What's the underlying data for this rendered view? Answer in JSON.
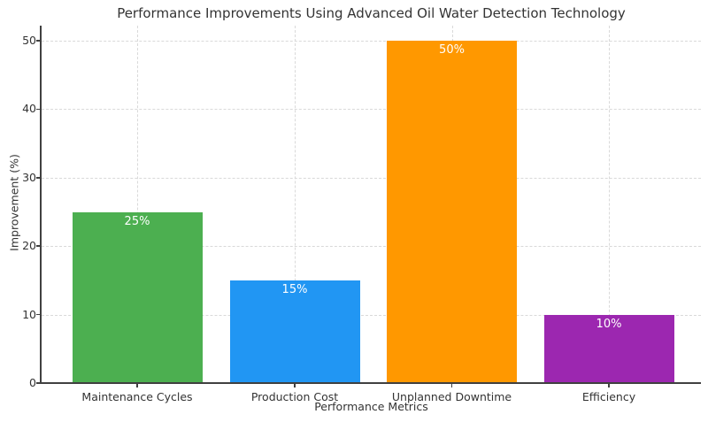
{
  "chart_data": {
    "type": "bar",
    "title": "Performance Improvements Using Advanced Oil Water Detection Technology",
    "xlabel": "Performance Metrics",
    "ylabel": "Improvement (%)",
    "categories": [
      "Maintenance Cycles",
      "Production Cost",
      "Unplanned Downtime",
      "Efficiency"
    ],
    "values": [
      25,
      15,
      50,
      10
    ],
    "bar_value_labels": [
      "25%",
      "15%",
      "50%",
      "10%"
    ],
    "bar_colors": [
      "#4CAF50",
      "#2196F3",
      "#FF9800",
      "#9C27B0"
    ],
    "bar_names": [
      "bar-maintenance-cycles",
      "bar-production-cost",
      "bar-unplanned-downtime",
      "bar-efficiency"
    ],
    "y_ticks": [
      0,
      10,
      20,
      30,
      40,
      50
    ],
    "y_tick_labels": [
      "0",
      "10",
      "20",
      "30",
      "40",
      "50"
    ],
    "ylim": [
      0,
      52.2
    ],
    "grid": true,
    "grid_style": "dashed",
    "legend": "none",
    "colors": {
      "grid_color": "#d9d9d9",
      "axis_color": "#404040",
      "text_color": "#333333",
      "value_label_color": "#ffffff",
      "background": "#ffffff"
    }
  }
}
